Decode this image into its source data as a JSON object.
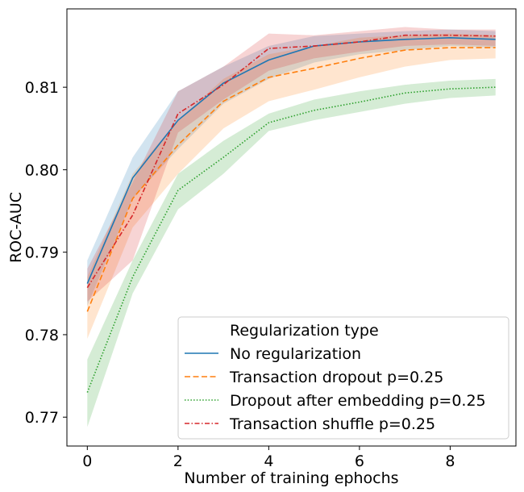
{
  "chart_data": {
    "type": "line",
    "xlabel": "Number of training ephochs",
    "ylabel": "ROC-AUC",
    "xlim": [
      -0.45,
      9.45
    ],
    "ylim": [
      0.7665,
      0.8195
    ],
    "x_ticks": [
      0,
      2,
      4,
      6,
      8
    ],
    "y_ticks": [
      0.77,
      0.78,
      0.79,
      0.8,
      0.81
    ],
    "y_tick_labels": [
      "0.77",
      "0.78",
      "0.79",
      "0.80",
      "0.81"
    ],
    "x": [
      0,
      1,
      2,
      3,
      4,
      5,
      6,
      7,
      8,
      9
    ],
    "legend_title": "Regularization type",
    "legend_position": "lower right",
    "grid": false,
    "series": [
      {
        "name": "No regularization",
        "color": "#1f77b4",
        "dash": "solid",
        "values": [
          0.7862,
          0.799,
          0.806,
          0.8105,
          0.8133,
          0.815,
          0.8155,
          0.8158,
          0.816,
          0.8158
        ],
        "lower": [
          0.7835,
          0.7965,
          0.8025,
          0.808,
          0.811,
          0.813,
          0.814,
          0.8145,
          0.815,
          0.8148
        ],
        "upper": [
          0.789,
          0.8015,
          0.8095,
          0.8125,
          0.815,
          0.8162,
          0.8165,
          0.8168,
          0.817,
          0.8168
        ]
      },
      {
        "name": "Transaction dropout p=0.25",
        "color": "#ff7f0e",
        "dash": "dashed",
        "values": [
          0.7828,
          0.7965,
          0.803,
          0.8083,
          0.8112,
          0.8123,
          0.8135,
          0.8145,
          0.8148,
          0.8148
        ],
        "lower": [
          0.7795,
          0.793,
          0.7995,
          0.805,
          0.8083,
          0.8097,
          0.8112,
          0.8125,
          0.8133,
          0.8135
        ],
        "upper": [
          0.787,
          0.7995,
          0.806,
          0.811,
          0.814,
          0.815,
          0.816,
          0.8163,
          0.8165,
          0.8163
        ]
      },
      {
        "name": "Dropout after embedding p=0.25",
        "color": "#2ca02c",
        "dash": "dotted",
        "values": [
          0.773,
          0.787,
          0.7975,
          0.8015,
          0.8057,
          0.8072,
          0.8082,
          0.8093,
          0.8098,
          0.81
        ],
        "lower": [
          0.7688,
          0.785,
          0.7952,
          0.7995,
          0.8047,
          0.806,
          0.807,
          0.808,
          0.8087,
          0.809
        ],
        "upper": [
          0.777,
          0.789,
          0.7995,
          0.8035,
          0.8068,
          0.8085,
          0.8095,
          0.8103,
          0.8108,
          0.811
        ]
      },
      {
        "name": "Transaction shuffle p=0.25",
        "color": "#d62728",
        "dash": "dashdot",
        "values": [
          0.7857,
          0.7945,
          0.8068,
          0.8103,
          0.8147,
          0.815,
          0.8155,
          0.8163,
          0.8163,
          0.8162
        ],
        "lower": [
          0.784,
          0.789,
          0.8045,
          0.8085,
          0.812,
          0.8135,
          0.8143,
          0.815,
          0.8152,
          0.815
        ],
        "upper": [
          0.788,
          0.7985,
          0.8095,
          0.8125,
          0.8165,
          0.8163,
          0.8168,
          0.8173,
          0.817,
          0.817
        ]
      }
    ]
  }
}
